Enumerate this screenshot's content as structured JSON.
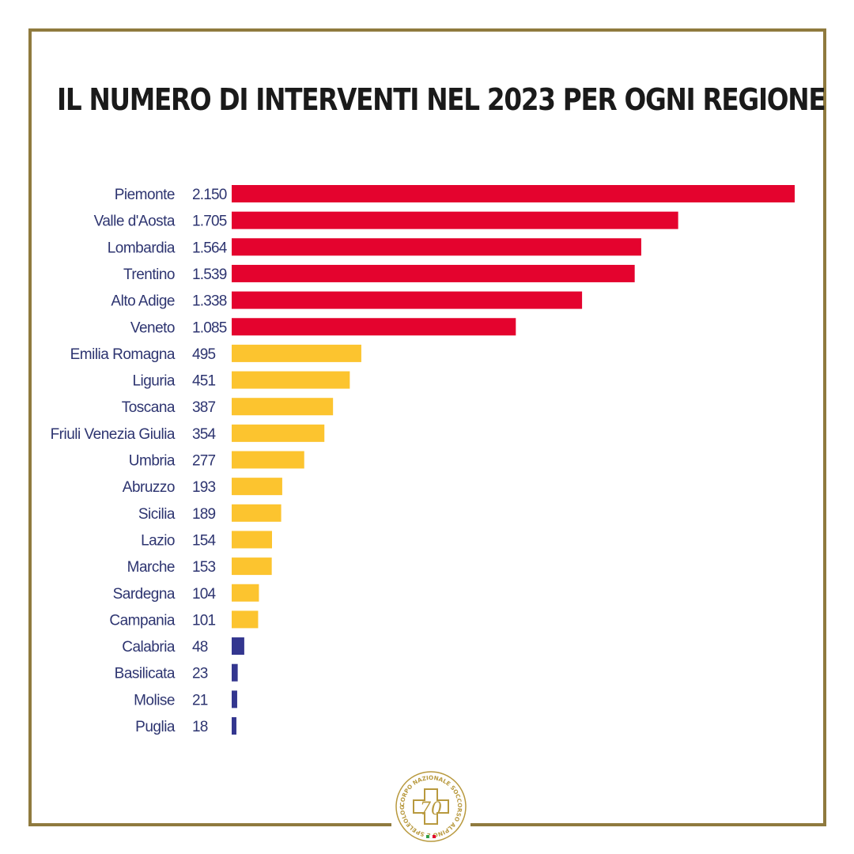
{
  "title": "IL NUMERO DI INTERVENTI NEL 2023 PER OGNI REGIONE",
  "logo": {
    "icon": "cnsas-emblem-icon",
    "text": "CORPO NAZIONALE SOCCORSO ALPINO E SPELEOLOGICO",
    "mark": "70"
  },
  "colors": {
    "frame": "#8f7a3e",
    "high": "#e4032e",
    "mid": "#fcc42f",
    "low": "#33368f",
    "label": "#2d3470"
  },
  "chart_data": {
    "type": "bar",
    "orientation": "horizontal",
    "title": "IL NUMERO DI INTERVENTI NEL 2023 PER OGNI REGIONE",
    "xlabel": "",
    "ylabel": "",
    "xlim": [
      0,
      2150
    ],
    "grid": false,
    "categories": [
      "Piemonte",
      "Valle d'Aosta",
      "Lombardia",
      "Trentino",
      "Alto Adige",
      "Veneto",
      "Emilia Romagna",
      "Liguria",
      "Toscana",
      "Friuli Venezia Giulia",
      "Umbria",
      "Abruzzo",
      "Sicilia",
      "Lazio",
      "Marche",
      "Sardegna",
      "Campania",
      "Calabria",
      "Basilicata",
      "Molise",
      "Puglia"
    ],
    "values": [
      2150,
      1705,
      1564,
      1539,
      1338,
      1085,
      495,
      451,
      387,
      354,
      277,
      193,
      189,
      154,
      153,
      104,
      101,
      48,
      23,
      21,
      18
    ],
    "value_labels": [
      "2.150",
      "1.705",
      "1.564",
      "1.539",
      "1.338",
      "1.085",
      "495",
      "451",
      "387",
      "354",
      "277",
      "193",
      "189",
      "154",
      "153",
      "104",
      "101",
      "48",
      "23",
      "21",
      "18"
    ],
    "bar_groups": [
      "high",
      "high",
      "high",
      "high",
      "high",
      "high",
      "mid",
      "mid",
      "mid",
      "mid",
      "mid",
      "mid",
      "mid",
      "mid",
      "mid",
      "mid",
      "mid",
      "low",
      "low",
      "low",
      "low"
    ]
  }
}
